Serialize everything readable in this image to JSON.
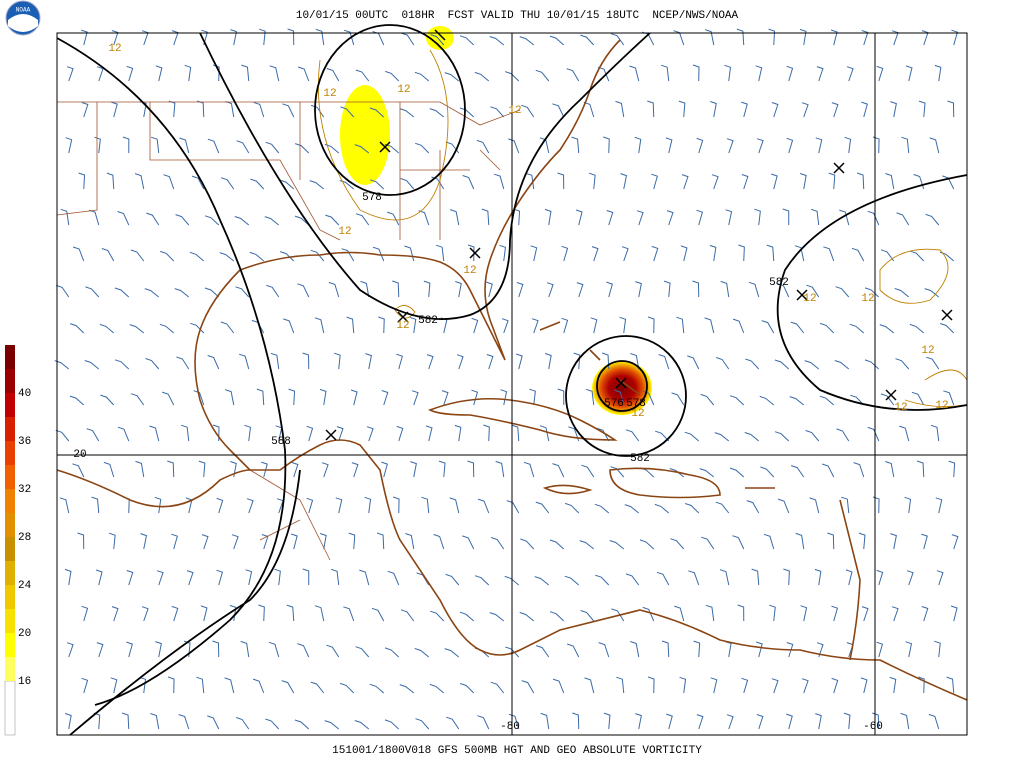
{
  "header": {
    "title": "10/01/15 00UTC  018HR  FCST VALID THU 10/01/15 18UTC  NCEP/NWS/NOAA"
  },
  "footer": {
    "caption": "151001/1800V018 GFS 500MB HGT AND GEO ABSOLUTE VORTICITY"
  },
  "logo": {
    "text": "NOAA"
  },
  "legend": {
    "ticks": [
      40,
      36,
      32,
      28,
      24,
      20,
      16
    ],
    "colors": [
      "#7a0000",
      "#9a0000",
      "#c00000",
      "#d82000",
      "#e84000",
      "#f06000",
      "#f08000",
      "#e09000",
      "#c89000",
      "#e0b000",
      "#f0c800",
      "#f8e000",
      "#ffff00",
      "#ffff60"
    ]
  },
  "map": {
    "lat_labels": [
      "20"
    ],
    "lon_labels": [
      "-80",
      "-60"
    ],
    "height_labels": [
      "578",
      "582",
      "576",
      "578",
      "582",
      "582",
      "588"
    ],
    "vorticity_labels": [
      "12",
      "12",
      "12",
      "12",
      "12",
      "12",
      "12",
      "12",
      "12",
      "12",
      "12",
      "12",
      "12"
    ]
  }
}
